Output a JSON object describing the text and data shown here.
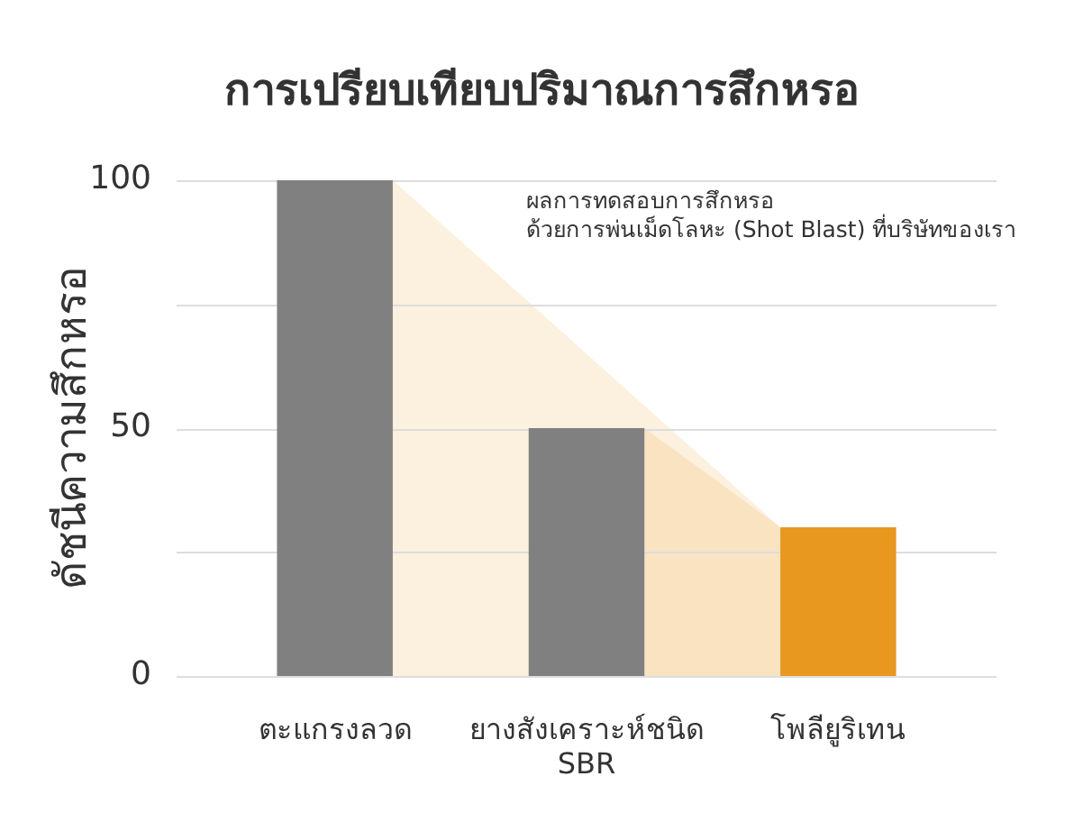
{
  "chart_data": {
    "type": "bar",
    "title": "การเปรียบเทียบปริมาณการสึกหรอ",
    "ylabel": "ดัชนีความสึกหรอ",
    "categories": [
      "ตะแกรงลวด",
      "ยางสังเคราะห์ชนิด SBR",
      "โพลียูริเทน"
    ],
    "values": [
      100,
      50,
      30
    ],
    "colors": [
      "#808080",
      "#808080",
      "#e8971f"
    ],
    "ylim": [
      0,
      100
    ],
    "yticks": [
      0,
      {
        "value": 25,
        "label": null
      },
      50,
      {
        "value": 75,
        "label": null
      },
      100
    ],
    "grid": "y",
    "annotations": [
      "ผลการทดสอบการสึกหรอ\nด้วยการพ่นเม็ดโลหะ (Shot Blast) ที่บริษัทของเรา"
    ]
  }
}
